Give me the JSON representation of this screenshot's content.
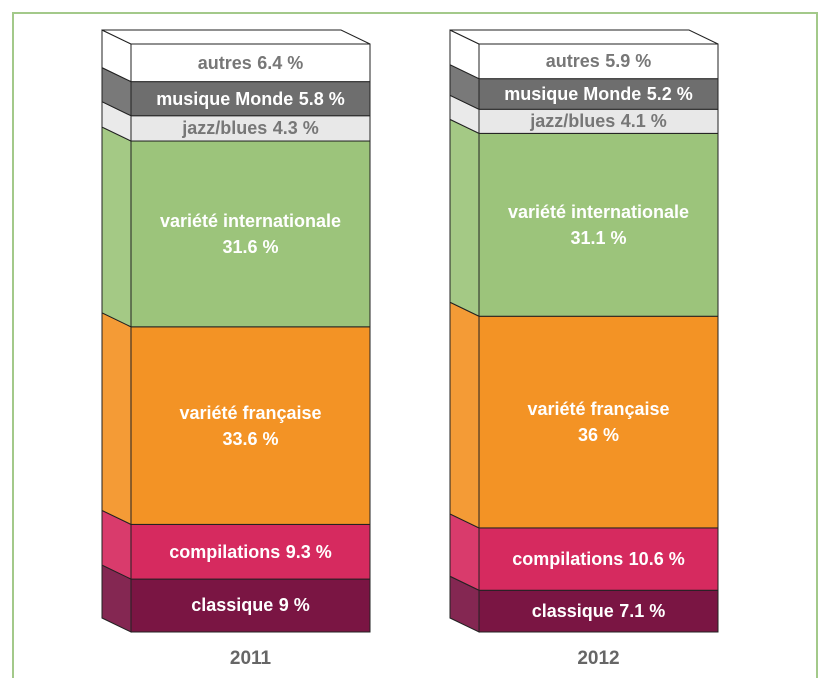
{
  "chart_data": {
    "type": "stacked_bar",
    "categories": [
      "2011",
      "2012"
    ],
    "ylim": [
      0,
      100
    ],
    "series": [
      {
        "name": "classique",
        "color": "#7a1543",
        "label_color": "#ffffff",
        "values": [
          9,
          7.1
        ],
        "value_labels": [
          "9 %",
          "7.1 %"
        ]
      },
      {
        "name": "compilations",
        "color": "#d62a5f",
        "label_color": "#ffffff",
        "values": [
          9.3,
          10.6
        ],
        "value_labels": [
          "9.3 %",
          "10.6 %"
        ]
      },
      {
        "name": "variété française",
        "color": "#f39325",
        "label_color": "#ffffff",
        "values": [
          33.6,
          36
        ],
        "value_labels": [
          "33.6 %",
          "36 %"
        ]
      },
      {
        "name": "variété internationale",
        "color": "#9cc47b",
        "label_color": "#ffffff",
        "values": [
          31.6,
          31.1
        ],
        "value_labels": [
          "31.6 %",
          "31.1 %"
        ]
      },
      {
        "name": "jazz/blues",
        "color": "#e8e8e8",
        "label_color": "#777777",
        "values": [
          4.3,
          4.1
        ],
        "value_labels": [
          "4.3 %",
          "4.1 %"
        ]
      },
      {
        "name": "musique Monde",
        "color": "#6e6e6e",
        "label_color": "#ffffff",
        "values": [
          5.8,
          5.2
        ],
        "value_labels": [
          "5.8 %",
          "5.2 %"
        ]
      },
      {
        "name": "autres",
        "color": "#ffffff",
        "label_color": "#777777",
        "values": [
          6.4,
          5.9
        ],
        "value_labels": [
          "6.4 %",
          "5.9 %"
        ]
      }
    ]
  }
}
